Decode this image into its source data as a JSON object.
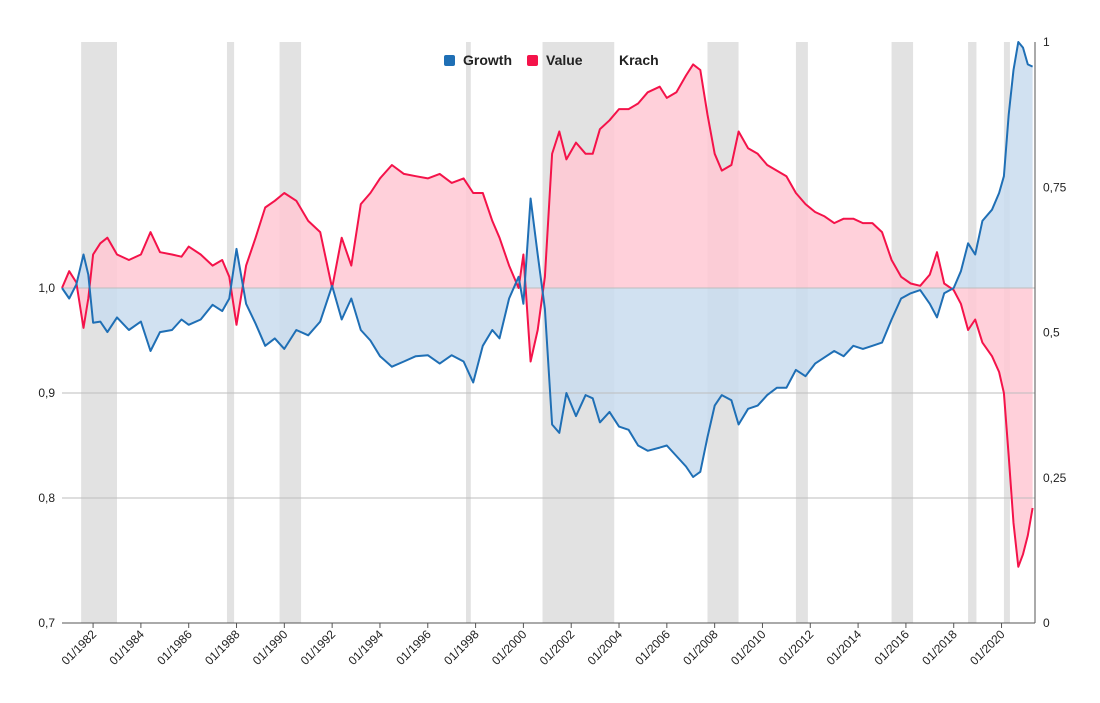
{
  "chart_data": {
    "type": "area",
    "x_ticks": [
      "01/1982",
      "01/1984",
      "01/1986",
      "01/1988",
      "01/1990",
      "01/1992",
      "01/1994",
      "01/1996",
      "01/1998",
      "01/2000",
      "01/2002",
      "01/2004",
      "01/2006",
      "01/2008",
      "01/2010",
      "01/2012",
      "01/2014",
      "01/2016",
      "01/2018",
      "01/2020"
    ],
    "y_left_ticks": [
      "0,7",
      "0,8",
      "0,9",
      "1,0"
    ],
    "y_right_ticks": [
      "0",
      "0,25",
      "0,5",
      "0,75",
      "1"
    ],
    "legend": [
      {
        "label": "Growth",
        "color": "#1f6fb5"
      },
      {
        "label": "Value",
        "color": "#f4134a"
      },
      {
        "label": "Krach",
        "color": "#d9d9d9"
      }
    ],
    "colors": {
      "growth": "#1f6fb5",
      "growth_fill": "#c9dcef",
      "value": "#f4134a",
      "value_fill": "#ffc8d4",
      "krach": "#e2e2e2",
      "grid": "#bdbdbd"
    },
    "x_range": [
      1980.7,
      2021.4
    ],
    "y_left_range": [
      0.7,
      1.22
    ],
    "y_right_range": [
      0,
      1
    ],
    "krach_periods": [
      [
        1981.5,
        1983.0
      ],
      [
        1987.6,
        1987.9
      ],
      [
        1989.8,
        1990.7
      ],
      [
        1997.6,
        1997.8
      ],
      [
        2000.8,
        2003.8
      ],
      [
        2007.7,
        2009.0
      ],
      [
        2011.4,
        2011.9
      ],
      [
        2015.4,
        2016.3
      ],
      [
        2018.6,
        2018.95
      ],
      [
        2020.1,
        2020.35
      ]
    ],
    "growth": [
      [
        1980.7,
        1.0
      ],
      [
        1981.0,
        0.99
      ],
      [
        1981.3,
        1.003
      ],
      [
        1981.6,
        1.03
      ],
      [
        1981.8,
        1.012
      ],
      [
        1982.0,
        0.967
      ],
      [
        1982.3,
        0.968
      ],
      [
        1982.6,
        0.958
      ],
      [
        1983.0,
        0.972
      ],
      [
        1983.5,
        0.96
      ],
      [
        1984.0,
        0.968
      ],
      [
        1984.4,
        0.94
      ],
      [
        1984.8,
        0.958
      ],
      [
        1985.3,
        0.96
      ],
      [
        1985.7,
        0.97
      ],
      [
        1986.0,
        0.965
      ],
      [
        1986.5,
        0.97
      ],
      [
        1987.0,
        0.984
      ],
      [
        1987.4,
        0.978
      ],
      [
        1987.7,
        0.99
      ],
      [
        1988.0,
        1.035
      ],
      [
        1988.4,
        0.985
      ],
      [
        1988.8,
        0.966
      ],
      [
        1989.2,
        0.945
      ],
      [
        1989.6,
        0.952
      ],
      [
        1990.0,
        0.942
      ],
      [
        1990.5,
        0.96
      ],
      [
        1991.0,
        0.955
      ],
      [
        1991.5,
        0.968
      ],
      [
        1992.0,
        1.002
      ],
      [
        1992.4,
        0.97
      ],
      [
        1992.8,
        0.99
      ],
      [
        1993.2,
        0.96
      ],
      [
        1993.6,
        0.95
      ],
      [
        1994.0,
        0.935
      ],
      [
        1994.5,
        0.925
      ],
      [
        1995.0,
        0.93
      ],
      [
        1995.5,
        0.935
      ],
      [
        1996.0,
        0.936
      ],
      [
        1996.5,
        0.928
      ],
      [
        1997.0,
        0.936
      ],
      [
        1997.5,
        0.93
      ],
      [
        1997.9,
        0.91
      ],
      [
        1998.3,
        0.945
      ],
      [
        1998.7,
        0.96
      ],
      [
        1999.0,
        0.952
      ],
      [
        1999.4,
        0.99
      ],
      [
        1999.8,
        1.01
      ],
      [
        2000.0,
        0.985
      ],
      [
        2000.3,
        1.08
      ],
      [
        2000.6,
        1.03
      ],
      [
        2000.9,
        0.98
      ],
      [
        2001.2,
        0.87
      ],
      [
        2001.5,
        0.862
      ],
      [
        2001.8,
        0.9
      ],
      [
        2002.2,
        0.878
      ],
      [
        2002.6,
        0.898
      ],
      [
        2002.9,
        0.895
      ],
      [
        2003.2,
        0.872
      ],
      [
        2003.6,
        0.882
      ],
      [
        2004.0,
        0.868
      ],
      [
        2004.4,
        0.865
      ],
      [
        2004.8,
        0.85
      ],
      [
        2005.2,
        0.845
      ],
      [
        2005.7,
        0.848
      ],
      [
        2006.0,
        0.85
      ],
      [
        2006.4,
        0.84
      ],
      [
        2006.8,
        0.83
      ],
      [
        2007.1,
        0.82
      ],
      [
        2007.4,
        0.825
      ],
      [
        2007.7,
        0.858
      ],
      [
        2008.0,
        0.888
      ],
      [
        2008.3,
        0.898
      ],
      [
        2008.7,
        0.893
      ],
      [
        2009.0,
        0.87
      ],
      [
        2009.4,
        0.885
      ],
      [
        2009.8,
        0.888
      ],
      [
        2010.2,
        0.898
      ],
      [
        2010.6,
        0.905
      ],
      [
        2011.0,
        0.905
      ],
      [
        2011.4,
        0.922
      ],
      [
        2011.8,
        0.916
      ],
      [
        2012.2,
        0.928
      ],
      [
        2012.6,
        0.934
      ],
      [
        2013.0,
        0.94
      ],
      [
        2013.4,
        0.935
      ],
      [
        2013.8,
        0.945
      ],
      [
        2014.2,
        0.942
      ],
      [
        2014.6,
        0.945
      ],
      [
        2015.0,
        0.948
      ],
      [
        2015.4,
        0.97
      ],
      [
        2015.8,
        0.99
      ],
      [
        2016.2,
        0.995
      ],
      [
        2016.6,
        0.998
      ],
      [
        2017.0,
        0.985
      ],
      [
        2017.3,
        0.972
      ],
      [
        2017.6,
        0.995
      ],
      [
        2018.0,
        1.0
      ],
      [
        2018.3,
        1.015
      ],
      [
        2018.6,
        1.04
      ],
      [
        2018.9,
        1.03
      ],
      [
        2019.2,
        1.06
      ],
      [
        2019.6,
        1.07
      ],
      [
        2019.9,
        1.085
      ],
      [
        2020.1,
        1.1
      ],
      [
        2020.3,
        1.155
      ],
      [
        2020.5,
        1.195
      ],
      [
        2020.7,
        1.22
      ],
      [
        2020.9,
        1.215
      ],
      [
        2021.1,
        1.2
      ],
      [
        2021.3,
        1.198
      ]
    ],
    "value": [
      [
        1980.7,
        1.0
      ],
      [
        1981.0,
        1.015
      ],
      [
        1981.3,
        1.005
      ],
      [
        1981.6,
        0.962
      ],
      [
        1981.8,
        0.99
      ],
      [
        1982.0,
        1.03
      ],
      [
        1982.3,
        1.04
      ],
      [
        1982.6,
        1.045
      ],
      [
        1983.0,
        1.03
      ],
      [
        1983.5,
        1.025
      ],
      [
        1984.0,
        1.03
      ],
      [
        1984.4,
        1.05
      ],
      [
        1984.8,
        1.032
      ],
      [
        1985.3,
        1.03
      ],
      [
        1985.7,
        1.028
      ],
      [
        1986.0,
        1.037
      ],
      [
        1986.5,
        1.03
      ],
      [
        1987.0,
        1.02
      ],
      [
        1987.4,
        1.025
      ],
      [
        1987.7,
        1.01
      ],
      [
        1988.0,
        0.965
      ],
      [
        1988.4,
        1.02
      ],
      [
        1988.8,
        1.045
      ],
      [
        1989.2,
        1.072
      ],
      [
        1989.6,
        1.078
      ],
      [
        1990.0,
        1.085
      ],
      [
        1990.5,
        1.078
      ],
      [
        1991.0,
        1.06
      ],
      [
        1991.5,
        1.05
      ],
      [
        1992.0,
        1.0
      ],
      [
        1992.4,
        1.045
      ],
      [
        1992.8,
        1.02
      ],
      [
        1993.2,
        1.075
      ],
      [
        1993.6,
        1.085
      ],
      [
        1994.0,
        1.098
      ],
      [
        1994.5,
        1.11
      ],
      [
        1995.0,
        1.102
      ],
      [
        1995.5,
        1.1
      ],
      [
        1996.0,
        1.098
      ],
      [
        1996.5,
        1.102
      ],
      [
        1997.0,
        1.094
      ],
      [
        1997.5,
        1.098
      ],
      [
        1997.9,
        1.085
      ],
      [
        1998.3,
        1.085
      ],
      [
        1998.7,
        1.06
      ],
      [
        1999.0,
        1.045
      ],
      [
        1999.4,
        1.02
      ],
      [
        1999.8,
        1.0
      ],
      [
        2000.0,
        1.03
      ],
      [
        2000.3,
        0.93
      ],
      [
        2000.6,
        0.96
      ],
      [
        2000.9,
        1.01
      ],
      [
        2001.2,
        1.12
      ],
      [
        2001.5,
        1.14
      ],
      [
        2001.8,
        1.115
      ],
      [
        2002.2,
        1.13
      ],
      [
        2002.6,
        1.12
      ],
      [
        2002.9,
        1.12
      ],
      [
        2003.2,
        1.142
      ],
      [
        2003.6,
        1.15
      ],
      [
        2004.0,
        1.16
      ],
      [
        2004.4,
        1.16
      ],
      [
        2004.8,
        1.165
      ],
      [
        2005.2,
        1.175
      ],
      [
        2005.7,
        1.18
      ],
      [
        2006.0,
        1.17
      ],
      [
        2006.4,
        1.175
      ],
      [
        2006.8,
        1.19
      ],
      [
        2007.1,
        1.2
      ],
      [
        2007.4,
        1.195
      ],
      [
        2007.7,
        1.155
      ],
      [
        2008.0,
        1.12
      ],
      [
        2008.3,
        1.105
      ],
      [
        2008.7,
        1.11
      ],
      [
        2009.0,
        1.14
      ],
      [
        2009.4,
        1.125
      ],
      [
        2009.8,
        1.12
      ],
      [
        2010.2,
        1.11
      ],
      [
        2010.6,
        1.105
      ],
      [
        2011.0,
        1.1
      ],
      [
        2011.4,
        1.085
      ],
      [
        2011.8,
        1.075
      ],
      [
        2012.2,
        1.068
      ],
      [
        2012.6,
        1.064
      ],
      [
        2013.0,
        1.058
      ],
      [
        2013.4,
        1.062
      ],
      [
        2013.8,
        1.062
      ],
      [
        2014.2,
        1.058
      ],
      [
        2014.6,
        1.058
      ],
      [
        2015.0,
        1.05
      ],
      [
        2015.4,
        1.025
      ],
      [
        2015.8,
        1.01
      ],
      [
        2016.2,
        1.004
      ],
      [
        2016.6,
        1.002
      ],
      [
        2017.0,
        1.012
      ],
      [
        2017.3,
        1.032
      ],
      [
        2017.6,
        1.004
      ],
      [
        2018.0,
        0.998
      ],
      [
        2018.3,
        0.985
      ],
      [
        2018.6,
        0.96
      ],
      [
        2018.9,
        0.97
      ],
      [
        2019.2,
        0.948
      ],
      [
        2019.6,
        0.935
      ],
      [
        2019.9,
        0.92
      ],
      [
        2020.1,
        0.9
      ],
      [
        2020.3,
        0.84
      ],
      [
        2020.5,
        0.78
      ],
      [
        2020.7,
        0.745
      ],
      [
        2020.9,
        0.755
      ],
      [
        2021.1,
        0.77
      ],
      [
        2021.3,
        0.792
      ]
    ]
  }
}
